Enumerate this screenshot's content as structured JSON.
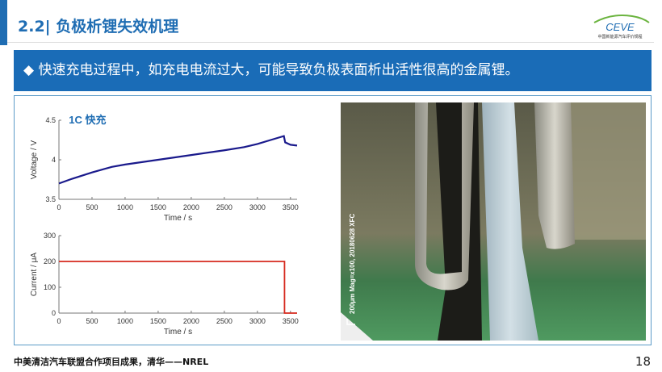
{
  "header": {
    "title": "2.2| 负极析锂失效机理",
    "logo_text": "CEVE",
    "logo_subtitle": "中国新能源汽车评价规程"
  },
  "banner": {
    "bullet": "◆",
    "text": "快速充电过程中，如充电电流过大，可能导致负极表面析出活性很高的金属锂。"
  },
  "photo": {
    "caption": "200μm Mag=x100, 20180628 XFC"
  },
  "footer": {
    "source": "中美清洁汽车联盟合作项目成果，清华——NREL",
    "page": "18"
  },
  "chart_data": [
    {
      "type": "line",
      "annotation": "1C 快充",
      "xlabel": "Time / s",
      "ylabel": "Voltage / V",
      "xlim": [
        0,
        3600
      ],
      "ylim": [
        3.5,
        4.5
      ],
      "xticks": [
        "0",
        "500",
        "1000",
        "1500",
        "2000",
        "2500",
        "3000",
        "3500"
      ],
      "yticks": [
        "3.5",
        "4",
        "4.5"
      ],
      "color": "#1a1a8c",
      "x": [
        0,
        200,
        500,
        800,
        1000,
        1500,
        2000,
        2500,
        2800,
        3000,
        3200,
        3400,
        3420,
        3500,
        3600
      ],
      "y": [
        3.7,
        3.76,
        3.84,
        3.91,
        3.94,
        4.0,
        4.06,
        4.12,
        4.16,
        4.2,
        4.25,
        4.3,
        4.22,
        4.19,
        4.18
      ]
    },
    {
      "type": "line",
      "xlabel": "Time / s",
      "ylabel": "Current / μA",
      "xlim": [
        0,
        3600
      ],
      "ylim": [
        0,
        300
      ],
      "xticks": [
        "0",
        "500",
        "1000",
        "1500",
        "2000",
        "2500",
        "3000",
        "3500"
      ],
      "yticks": [
        "0",
        "100",
        "200",
        "300"
      ],
      "color": "#d62a1e",
      "x": [
        0,
        3410,
        3410,
        3600
      ],
      "y": [
        200,
        200,
        0,
        0
      ]
    }
  ]
}
